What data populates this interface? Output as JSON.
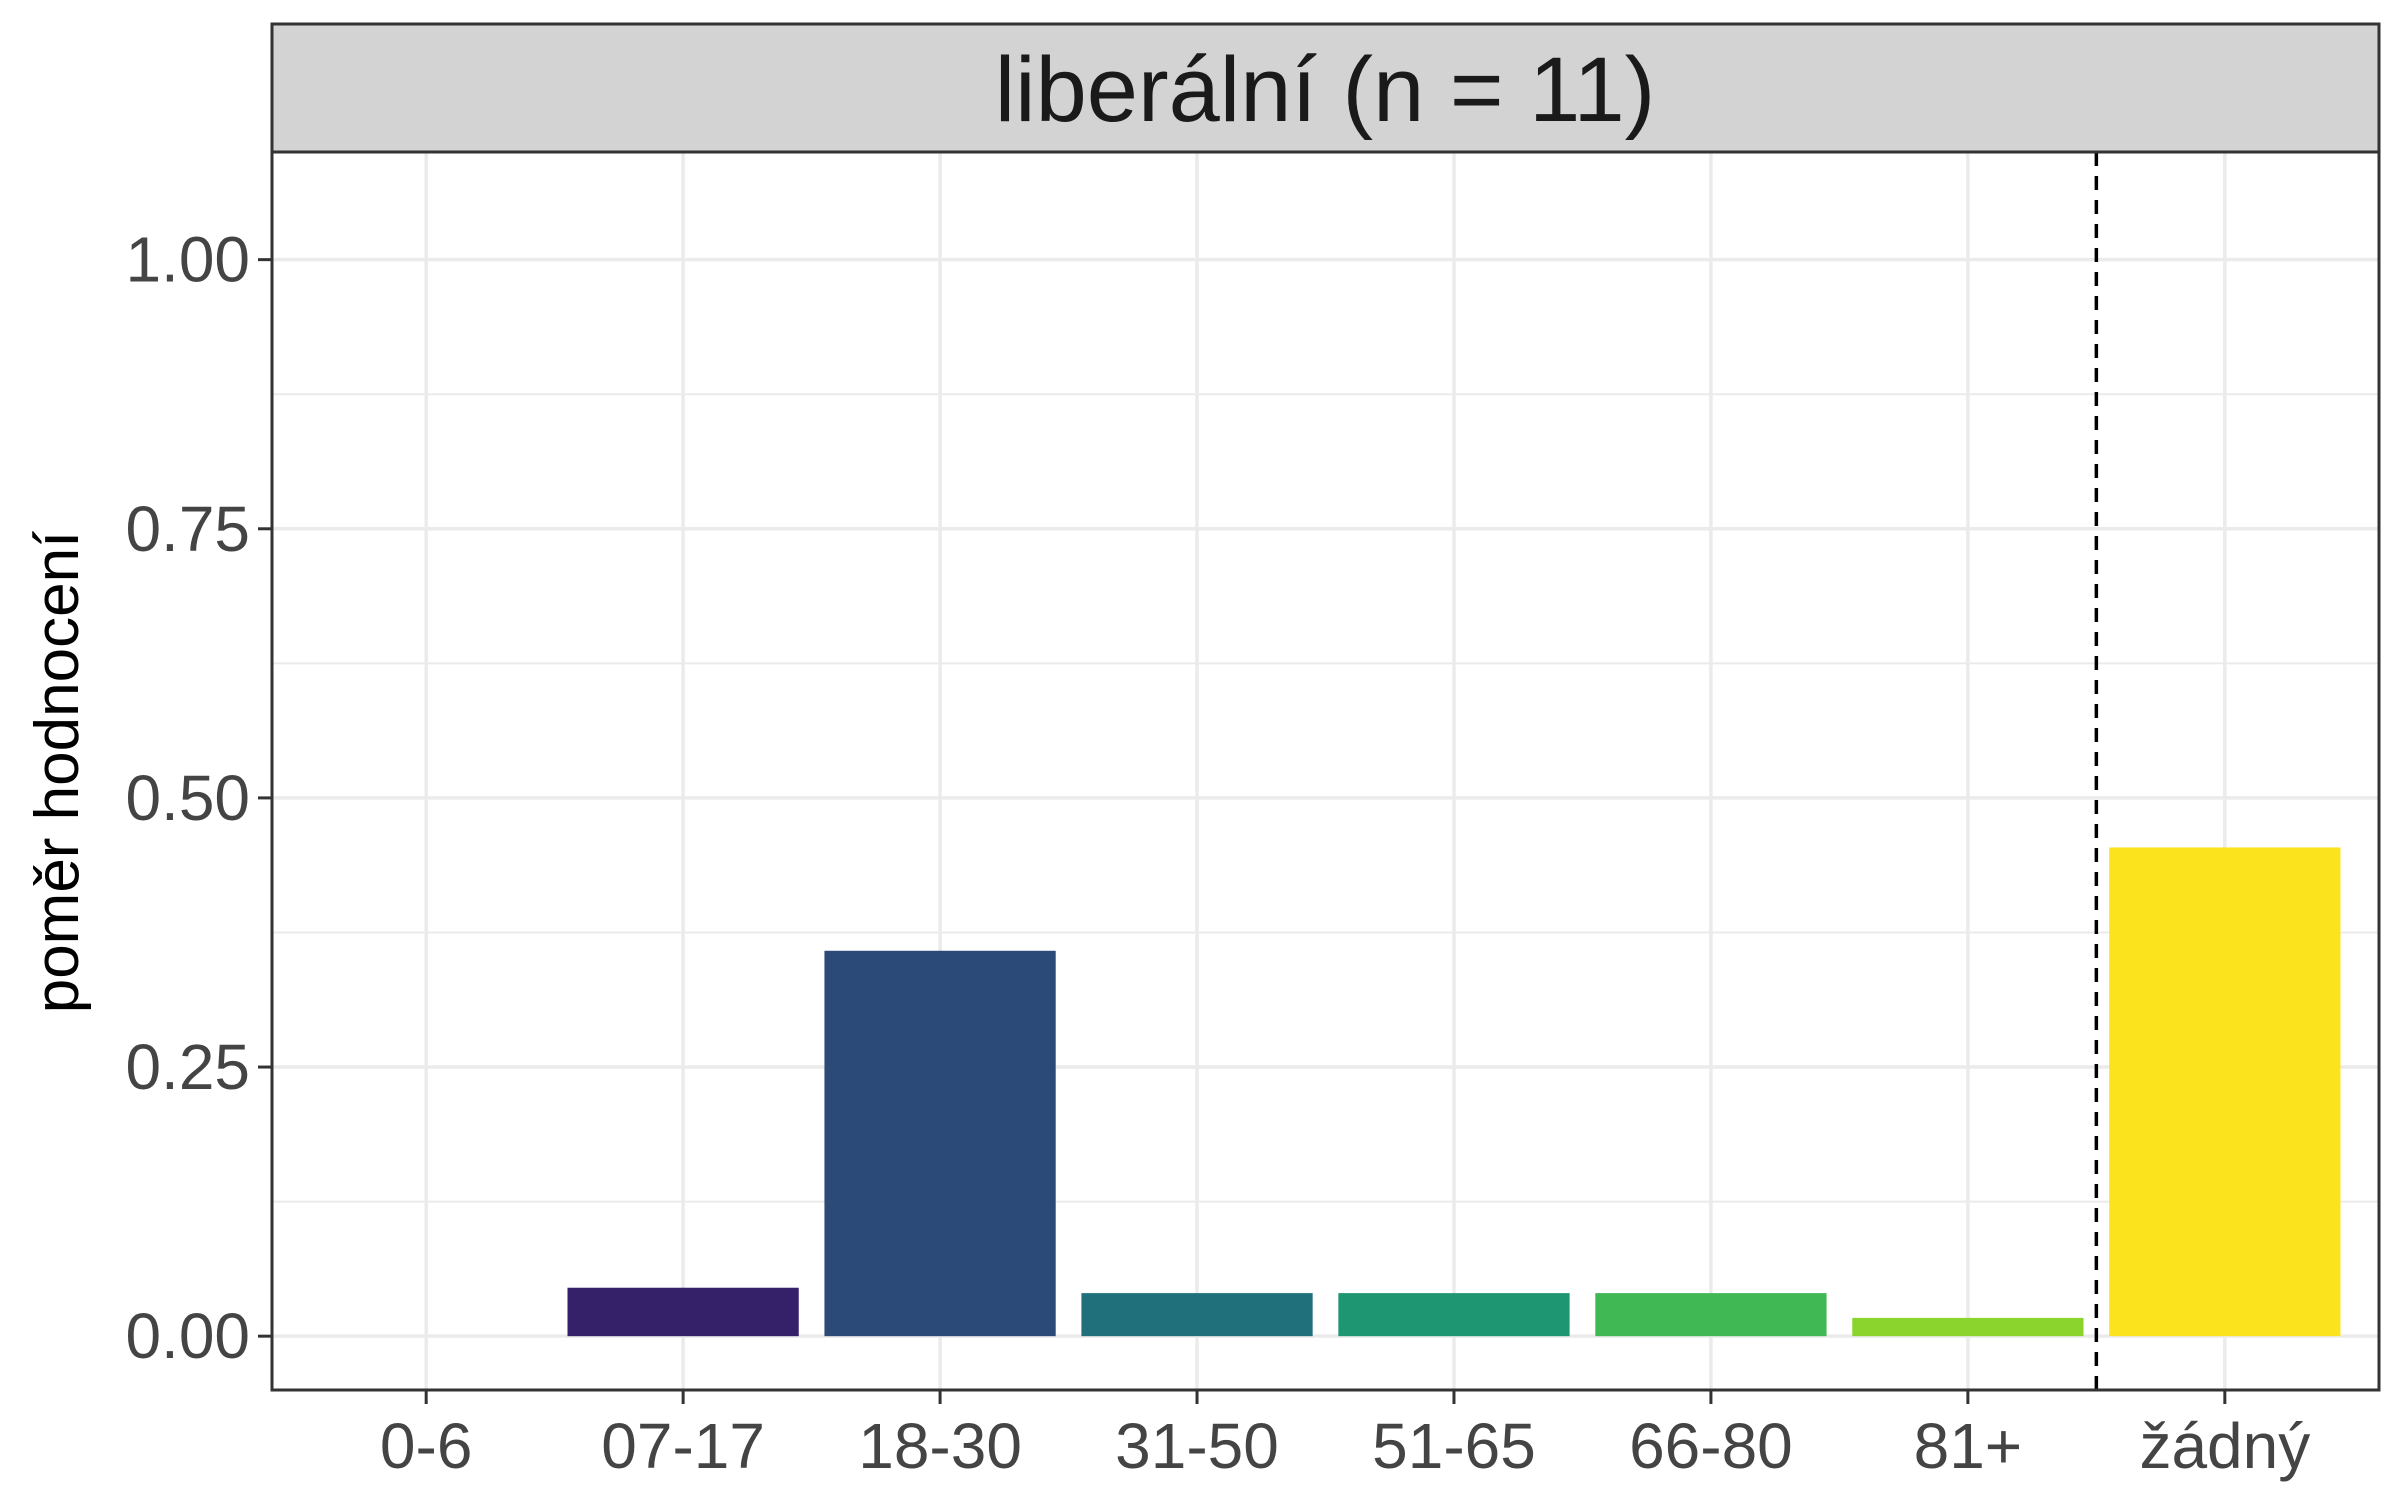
{
  "chart_data": {
    "type": "bar",
    "facet_label": "liberální (n = 11)",
    "ylabel": "poměr hodnocení",
    "xlabel": "",
    "categories": [
      "0-6",
      "07-17",
      "18-30",
      "31-50",
      "51-65",
      "66-80",
      "81+",
      "žádný"
    ],
    "values": [
      0.0,
      0.045,
      0.358,
      0.04,
      0.04,
      0.04,
      0.017,
      0.454
    ],
    "bar_colors": [
      "#440154",
      "#35206a",
      "#2c4a78",
      "#20707c",
      "#1f9672",
      "#40b955",
      "#8bd32d",
      "#fbe31e"
    ],
    "ylim": [
      -0.05,
      1.1
    ],
    "yticks": [
      0.0,
      0.25,
      0.5,
      0.75,
      1.0
    ],
    "ytick_labels": [
      "0.00",
      "0.25",
      "0.50",
      "0.75",
      "1.00"
    ],
    "separator_after_category": "81+",
    "separator_style": "dashed",
    "grid": true,
    "strip_background": "#d3d3d3",
    "grid_color": "#ebebeb"
  }
}
